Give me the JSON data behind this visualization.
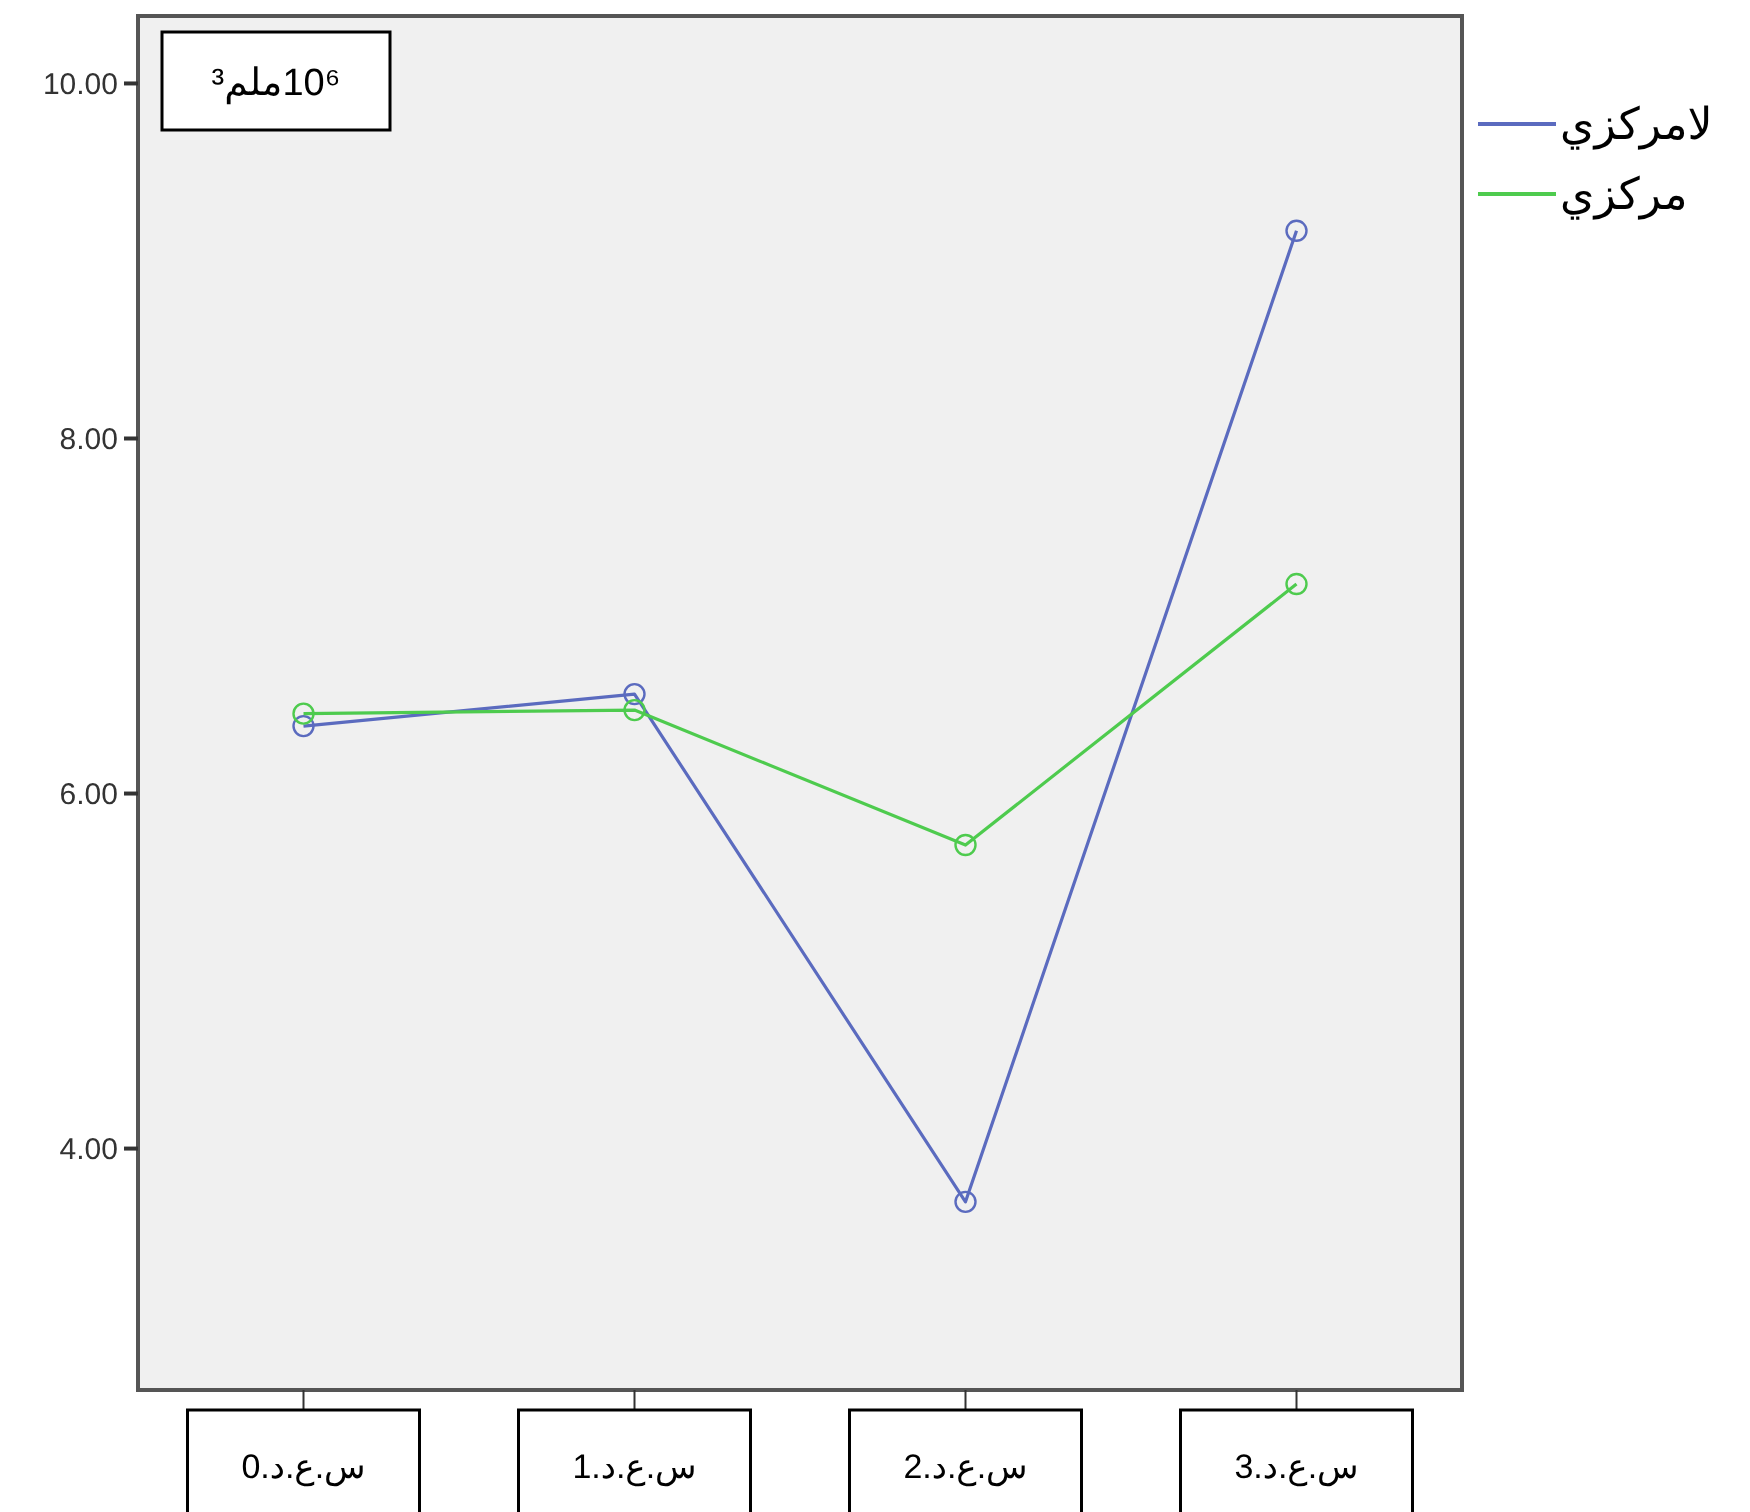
{
  "chart_data": {
    "type": "line",
    "categories": [
      "س.ع.د.0",
      "س.ع.د.1",
      "س.ع.د.2",
      "س.ع.د.3"
    ],
    "series": [
      {
        "name": "لامركزي",
        "color": "#5b6bbf",
        "values": [
          6.38,
          6.56,
          3.7,
          9.17
        ]
      },
      {
        "name": "مركزي",
        "color": "#4ecb4e",
        "values": [
          6.45,
          6.47,
          5.71,
          7.18
        ]
      }
    ],
    "ylim": [
      2.64,
      10.38
    ],
    "yticks": [
      {
        "value": 4,
        "label": "4.00"
      },
      {
        "value": 6,
        "label": "6.00"
      },
      {
        "value": 8,
        "label": "8.00"
      },
      {
        "value": 10,
        "label": "10.00"
      }
    ],
    "annotations": [
      "10⁶ملم³"
    ],
    "marker": "circle",
    "legend": "right",
    "grid": false
  }
}
